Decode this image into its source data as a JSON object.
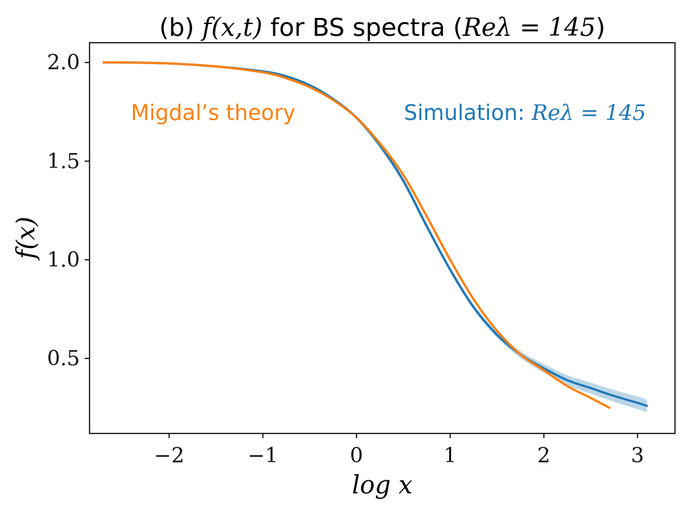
{
  "chart_data": {
    "type": "line",
    "title_prefix": "(b) ",
    "title_math": "f(x,t)",
    "title_middle": " for BS spectra (",
    "title_math2": "Reλ = 145",
    "title_suffix": ")",
    "xlabel": "log x",
    "ylabel": "f(x)",
    "xlim": [
      -2.85,
      3.4
    ],
    "ylim": [
      0.12,
      2.1
    ],
    "xticks": [
      -2,
      -1,
      0,
      1,
      2,
      3
    ],
    "xtick_labels": [
      "−2",
      "−1",
      "0",
      "1",
      "2",
      "3"
    ],
    "yticks": [
      0.5,
      1.0,
      1.5,
      2.0
    ],
    "ytick_labels": [
      "0.5",
      "1.0",
      "1.5",
      "2.0"
    ],
    "grid": false,
    "legend": "none (inline text labels)",
    "annotations": {
      "theory_label": "Migdal’s theory",
      "sim_label_text": "Simulation: ",
      "sim_label_math": "Reλ = 145"
    },
    "series": [
      {
        "name": "Simulation: Reλ = 145",
        "color": "#1f77b4",
        "x": [
          -2.7,
          -2.5,
          -2.0,
          -1.5,
          -1.0,
          -0.75,
          -0.5,
          -0.25,
          0.0,
          0.25,
          0.5,
          0.75,
          1.0,
          1.25,
          1.5,
          1.75,
          2.0,
          2.25,
          2.5,
          2.75,
          3.0,
          3.1
        ],
        "y": [
          2.0,
          2.0,
          1.995,
          1.98,
          1.955,
          1.93,
          1.885,
          1.815,
          1.72,
          1.58,
          1.4,
          1.17,
          0.95,
          0.76,
          0.62,
          0.52,
          0.45,
          0.39,
          0.35,
          0.31,
          0.275,
          0.26
        ],
        "band_lower": [
          2.0,
          2.0,
          1.99,
          1.975,
          1.95,
          1.925,
          1.88,
          1.808,
          1.71,
          1.565,
          1.385,
          1.155,
          0.937,
          0.747,
          0.605,
          0.503,
          0.428,
          0.365,
          0.322,
          0.28,
          0.243,
          0.228
        ],
        "band_upper": [
          2.0,
          2.0,
          2.0,
          1.985,
          1.96,
          1.935,
          1.89,
          1.822,
          1.73,
          1.595,
          1.415,
          1.185,
          0.963,
          0.773,
          0.635,
          0.537,
          0.472,
          0.415,
          0.378,
          0.34,
          0.307,
          0.292
        ]
      },
      {
        "name": "Migdal’s theory",
        "color": "#ff7f0e",
        "x": [
          -2.7,
          -2.5,
          -2.0,
          -1.5,
          -1.0,
          -0.75,
          -0.5,
          -0.25,
          0.0,
          0.25,
          0.5,
          0.75,
          1.0,
          1.25,
          1.5,
          1.75,
          2.0,
          2.25,
          2.5,
          2.7
        ],
        "y": [
          2.0,
          2.0,
          1.995,
          1.98,
          1.95,
          1.92,
          1.875,
          1.81,
          1.72,
          1.59,
          1.43,
          1.22,
          1.0,
          0.8,
          0.64,
          0.52,
          0.44,
          0.36,
          0.3,
          0.25
        ]
      }
    ]
  }
}
